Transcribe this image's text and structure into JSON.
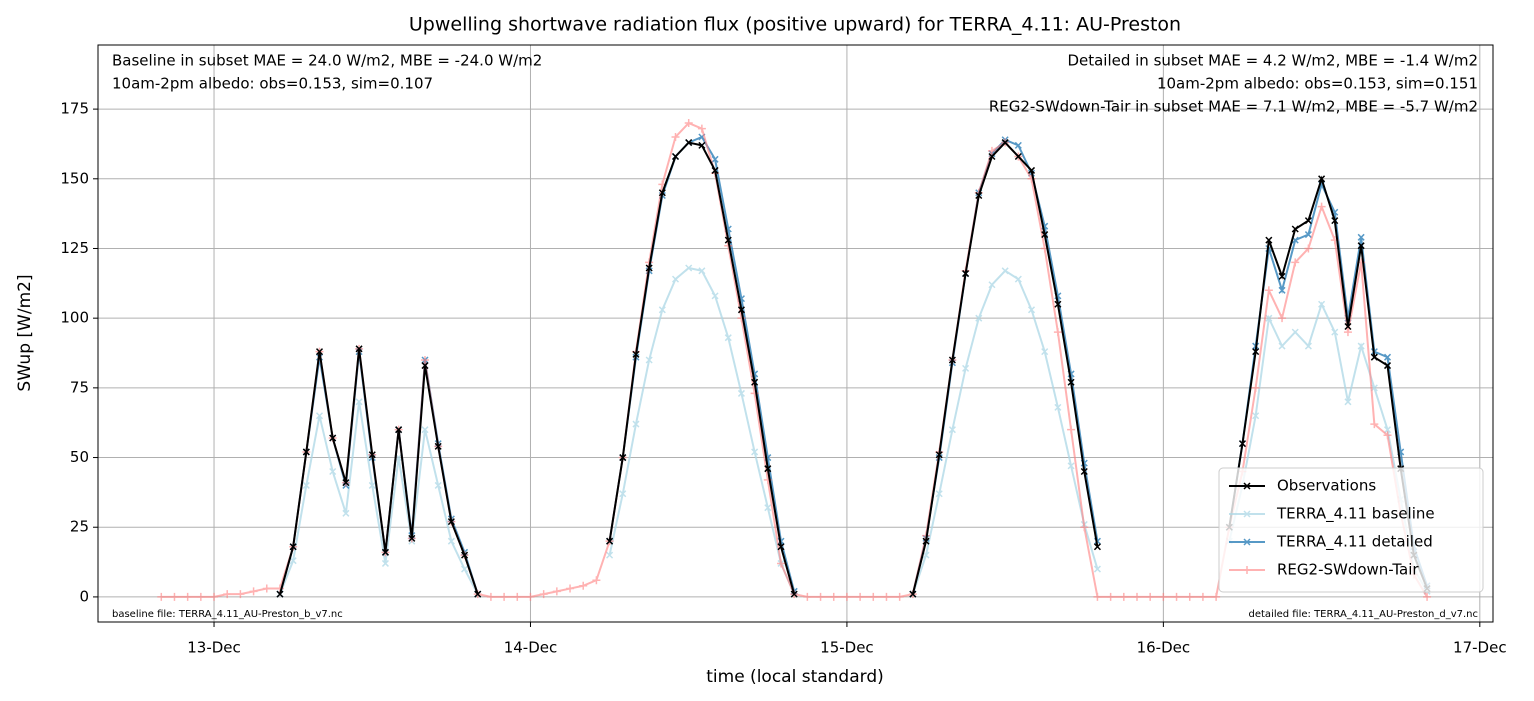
{
  "chart_data": {
    "type": "line",
    "title": "Upwelling shortwave radiation flux (positive upward) for TERRA_4.11: AU-Preston",
    "xlabel": "time (local standard)",
    "ylabel": "SWup [W/m2]",
    "annotations": [
      {
        "text": "Baseline in subset MAE = 24.0 W/m2, MBE = -24.0 W/m2",
        "color": "#add8e6"
      },
      {
        "text": "10am-2pm albedo: obs=0.153, sim=0.107",
        "color": "#000000"
      },
      {
        "text": "Detailed in subset MAE = 4.2 W/m2, MBE = -1.4 W/m2",
        "color": "#1f77b4"
      },
      {
        "text": "10am-2pm albedo: obs=0.153, sim=0.151",
        "color": "#000000"
      },
      {
        "text": "REG2-SWdown-Tair in subset MAE = 7.1 W/m2, MBE = -5.7 W/m2",
        "color": "#ff0000"
      },
      {
        "text": "baseline file: TERRA_4.11_AU-Preston_b_v7.nc",
        "color": "#000000"
      },
      {
        "text": "detailed file: TERRA_4.11_AU-Preston_d_v7.nc",
        "color": "#000000"
      }
    ],
    "x": [
      -4,
      -3,
      -2,
      -1,
      0,
      1,
      2,
      3,
      4,
      5,
      6,
      7,
      8,
      9,
      10,
      11,
      12,
      13,
      14,
      15,
      16,
      17,
      18,
      19,
      20,
      21,
      22,
      23,
      24,
      25,
      26,
      27,
      28,
      29,
      30,
      31,
      32,
      33,
      34,
      35,
      36,
      37,
      38,
      39,
      40,
      41,
      42,
      43,
      44,
      45,
      46,
      47,
      48,
      49,
      50,
      51,
      52,
      53,
      54,
      55,
      56,
      57,
      58,
      59,
      60,
      61,
      62,
      63,
      64,
      65,
      66,
      67,
      68,
      69,
      70,
      71,
      72,
      73,
      74,
      75,
      76,
      77,
      78,
      79,
      80,
      81,
      82,
      83,
      84,
      85,
      86,
      87,
      88,
      89,
      90,
      91,
      92
    ],
    "xlim": [
      -8.8,
      97
    ],
    "xticks": [
      {
        "value": 0,
        "label": "13-Dec"
      },
      {
        "value": 24,
        "label": "14-Dec"
      },
      {
        "value": 48,
        "label": "15-Dec"
      },
      {
        "value": 72,
        "label": "16-Dec"
      },
      {
        "value": 96,
        "label": "17-Dec"
      }
    ],
    "ylim": [
      -9,
      198
    ],
    "yticks": [
      0,
      25,
      50,
      75,
      100,
      125,
      150,
      175
    ],
    "grid": true,
    "legend": "lower right",
    "series": [
      {
        "name": "Observations",
        "color": "#000000",
        "marker": "x",
        "width": 2,
        "opacity": 1,
        "values": [
          null,
          null,
          null,
          null,
          null,
          null,
          null,
          null,
          null,
          1,
          18,
          52,
          88,
          57,
          41,
          89,
          51,
          16,
          60,
          21,
          83,
          54,
          27,
          15,
          1,
          null,
          null,
          null,
          null,
          null,
          null,
          null,
          null,
          null,
          20,
          50,
          87,
          118,
          145,
          158,
          163,
          162,
          153,
          128,
          103,
          77,
          46,
          18,
          1,
          null,
          null,
          null,
          null,
          null,
          null,
          null,
          null,
          1,
          20,
          51,
          85,
          116,
          144,
          158,
          163,
          158,
          153,
          130,
          105,
          77,
          45,
          18,
          null,
          null,
          null,
          null,
          null,
          null,
          null,
          null,
          null,
          25,
          55,
          88,
          128,
          115,
          132,
          135,
          150,
          135,
          97,
          126,
          86,
          83,
          46,
          15,
          3
        ]
      },
      {
        "name": "TERRA_4.11 baseline",
        "color": "#add8e6",
        "marker": "x",
        "width": 2,
        "opacity": 0.75,
        "values": [
          null,
          null,
          null,
          null,
          null,
          null,
          null,
          null,
          null,
          1,
          13,
          40,
          65,
          45,
          30,
          70,
          40,
          12,
          50,
          20,
          60,
          40,
          20,
          10,
          1,
          null,
          null,
          null,
          null,
          null,
          null,
          null,
          null,
          null,
          15,
          37,
          62,
          85,
          103,
          114,
          118,
          117,
          108,
          93,
          73,
          52,
          32,
          12,
          1,
          null,
          null,
          null,
          null,
          null,
          null,
          null,
          null,
          1,
          15,
          37,
          60,
          82,
          100,
          112,
          117,
          114,
          103,
          88,
          68,
          47,
          26,
          10,
          null,
          null,
          null,
          null,
          null,
          null,
          null,
          null,
          null,
          20,
          40,
          65,
          100,
          90,
          95,
          90,
          105,
          95,
          70,
          90,
          75,
          60,
          35,
          10,
          2
        ]
      },
      {
        "name": "TERRA_4.11 detailed",
        "color": "#1f77b4",
        "marker": "x",
        "width": 2,
        "opacity": 0.75,
        "values": [
          null,
          null,
          null,
          null,
          null,
          null,
          null,
          null,
          null,
          1,
          18,
          52,
          86,
          57,
          40,
          88,
          50,
          16,
          60,
          22,
          85,
          55,
          28,
          16,
          1,
          null,
          null,
          null,
          null,
          null,
          null,
          null,
          null,
          null,
          20,
          50,
          86,
          117,
          144,
          158,
          163,
          165,
          157,
          132,
          107,
          80,
          50,
          20,
          2,
          null,
          null,
          null,
          null,
          null,
          null,
          null,
          null,
          1,
          21,
          50,
          84,
          116,
          145,
          159,
          164,
          162,
          152,
          133,
          108,
          80,
          48,
          20,
          null,
          null,
          null,
          null,
          null,
          null,
          null,
          null,
          null,
          25,
          55,
          90,
          125,
          110,
          128,
          130,
          148,
          138,
          100,
          129,
          88,
          86,
          52,
          18,
          4
        ]
      },
      {
        "name": "REG2-SWdown-Tair",
        "color": "#ff8080",
        "marker": "+",
        "width": 2,
        "opacity": 0.6,
        "values": [
          0,
          0,
          0,
          0,
          0,
          1,
          1,
          2,
          3,
          3,
          18,
          52,
          88,
          57,
          41,
          89,
          51,
          16,
          60,
          21,
          85,
          54,
          27,
          15,
          1,
          0,
          0,
          0,
          0,
          1,
          2,
          3,
          4,
          6,
          20,
          50,
          88,
          120,
          148,
          165,
          170,
          168,
          152,
          126,
          100,
          73,
          42,
          12,
          1,
          0,
          0,
          0,
          0,
          0,
          0,
          0,
          0,
          1,
          22,
          52,
          85,
          117,
          145,
          160,
          163,
          158,
          150,
          125,
          95,
          60,
          25,
          0,
          0,
          0,
          0,
          0,
          0,
          0,
          0,
          0,
          0,
          25,
          45,
          75,
          110,
          100,
          120,
          125,
          140,
          128,
          95,
          120,
          62,
          58,
          30,
          8,
          0
        ]
      }
    ]
  }
}
